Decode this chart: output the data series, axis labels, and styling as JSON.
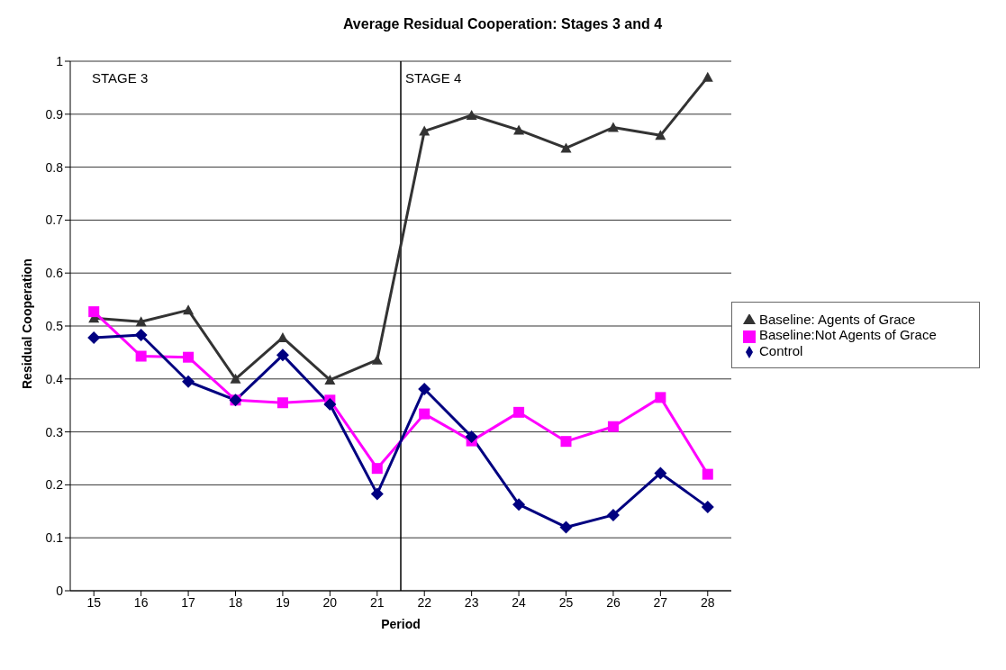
{
  "chart_data": {
    "type": "line",
    "title": "Average Residual Cooperation: Stages 3 and 4",
    "xlabel": "Period",
    "ylabel": "Residual Cooperation",
    "x": [
      15,
      16,
      17,
      18,
      19,
      20,
      21,
      22,
      23,
      24,
      25,
      26,
      27,
      28
    ],
    "xlim": [
      14.5,
      28.5
    ],
    "xticks": [
      15,
      16,
      17,
      18,
      19,
      20,
      21,
      22,
      23,
      24,
      25,
      26,
      27,
      28
    ],
    "ylim": [
      0,
      1
    ],
    "yticks": [
      0,
      0.1,
      0.2,
      0.3,
      0.4,
      0.5,
      0.6,
      0.7,
      0.8,
      0.9,
      1
    ],
    "grid": "y",
    "legend": "right",
    "series": [
      {
        "name": "Control",
        "color": "#000080",
        "marker": "diamond",
        "values": [
          0.478,
          0.483,
          0.395,
          0.36,
          0.445,
          0.352,
          0.183,
          0.381,
          0.291,
          0.163,
          0.12,
          0.143,
          0.222,
          0.158
        ]
      },
      {
        "name": "Baseline:Not Agents of Grace",
        "color": "#ff00ff",
        "marker": "square",
        "values": [
          0.527,
          0.443,
          0.441,
          0.36,
          0.355,
          0.36,
          0.231,
          0.334,
          0.283,
          0.337,
          0.282,
          0.31,
          0.365,
          0.22
        ]
      },
      {
        "name": "Baseline: Agents of Grace",
        "color": "#333333",
        "marker": "triangle",
        "values": [
          0.515,
          0.508,
          0.53,
          0.4,
          0.478,
          0.398,
          0.436,
          0.868,
          0.898,
          0.87,
          0.836,
          0.875,
          0.86,
          0.97
        ]
      }
    ],
    "ref_lines": [
      {
        "axis": "x",
        "value": 21.5,
        "color": "#000000"
      }
    ],
    "annotations": [
      "STAGE 3",
      "STAGE 4"
    ]
  }
}
